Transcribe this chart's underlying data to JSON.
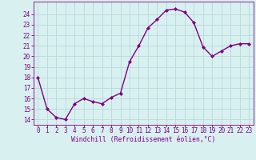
{
  "x": [
    0,
    1,
    2,
    3,
    4,
    5,
    6,
    7,
    8,
    9,
    10,
    11,
    12,
    13,
    14,
    15,
    16,
    17,
    18,
    19,
    20,
    21,
    22,
    23
  ],
  "y": [
    18,
    15,
    14.2,
    14,
    15.5,
    16,
    15.7,
    15.5,
    16.1,
    16.5,
    19.5,
    21,
    22.7,
    23.5,
    24.4,
    24.5,
    24.2,
    23.2,
    20.9,
    20,
    20.5,
    21,
    21.2,
    21.2
  ],
  "line_color": "#800080",
  "marker": "D",
  "marker_size": 2.0,
  "bg_color": "#d8f0f0",
  "grid_color": "#b8dada",
  "xlabel": "Windchill (Refroidissement éolien,°C)",
  "xlabel_color": "#800080",
  "tick_color": "#800080",
  "ylim": [
    13.5,
    25.2
  ],
  "xlim": [
    -0.5,
    23.5
  ],
  "yticks": [
    14,
    15,
    16,
    17,
    18,
    19,
    20,
    21,
    22,
    23,
    24
  ],
  "xticks": [
    0,
    1,
    2,
    3,
    4,
    5,
    6,
    7,
    8,
    9,
    10,
    11,
    12,
    13,
    14,
    15,
    16,
    17,
    18,
    19,
    20,
    21,
    22,
    23
  ],
  "font_family": "monospace",
  "xlabel_fontsize": 5.8,
  "tick_fontsize": 5.5,
  "linewidth": 1.0
}
